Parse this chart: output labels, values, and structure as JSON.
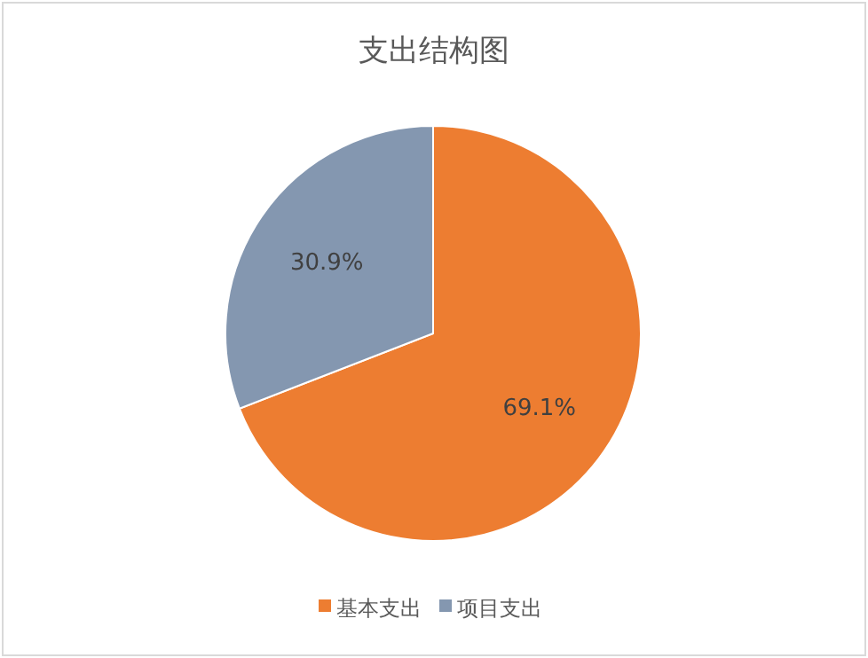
{
  "chart_data": {
    "type": "pie",
    "title": "支出结构图",
    "categories": [
      "基本支出",
      "项目支出"
    ],
    "values": [
      69.1,
      30.9
    ],
    "colors": [
      "#ed7d31",
      "#8497b0"
    ],
    "value_labels": [
      "69.1%",
      "30.9%"
    ],
    "legend": "bottom"
  }
}
